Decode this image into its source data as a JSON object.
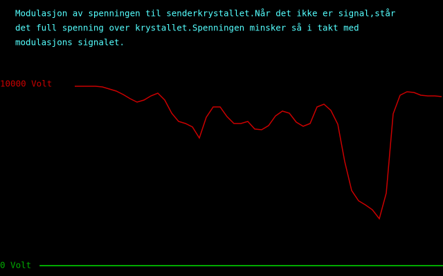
{
  "description": [
    "Modulasjon av spenningen til senderkrystallet.Når det ikke er signal,står",
    "det full spenning over krystallet.Spenningen minsker så i takt med",
    "modulasjons signalet."
  ],
  "chart_data": {
    "type": "line",
    "color": "#cc0000",
    "axis_color": "#00aa00",
    "values": [
      9886,
      9886,
      9886,
      9886,
      9848,
      9734,
      9620,
      9430,
      9202,
      9011,
      9125,
      9354,
      9506,
      9125,
      8403,
      7947,
      7833,
      7643,
      7034,
      8175,
      8745,
      8745,
      8213,
      7833,
      7833,
      7947,
      7529,
      7490,
      7719,
      8251,
      8517,
      8403,
      7909,
      7681,
      7833,
      8745,
      8897,
      8555,
      7795,
      5741,
      4144,
      3574,
      3346,
      3080,
      2586,
      3992,
      8365,
      9392,
      9582,
      9544,
      9392,
      9354,
      9354,
      9316
    ],
    "ylim": [
      0,
      10000
    ],
    "yticks": [
      {
        "value": 0,
        "label": "0 Volt"
      },
      {
        "value": 10000,
        "label": "10000 Volt"
      }
    ]
  }
}
